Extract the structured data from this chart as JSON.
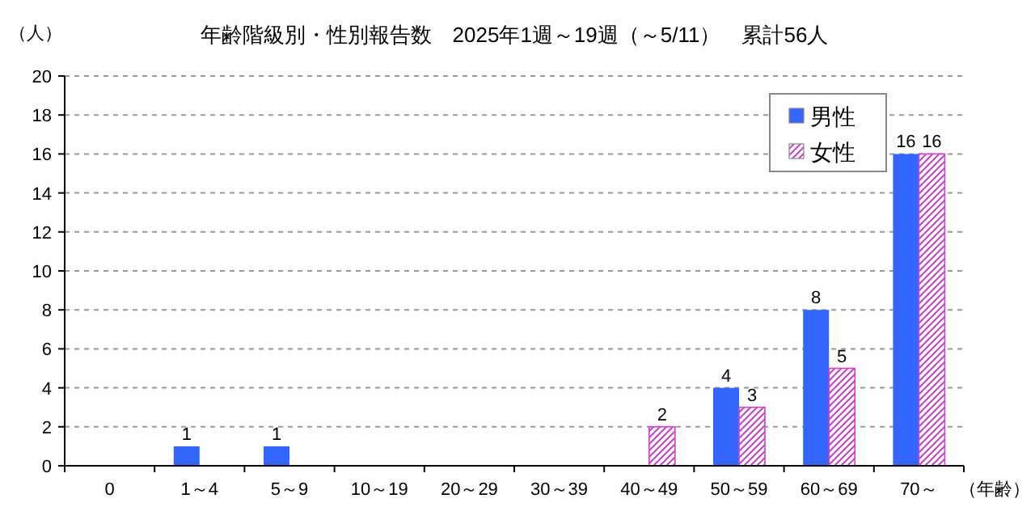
{
  "chart_data": {
    "type": "bar",
    "title": "年齢階級別・性別報告数　2025年1週～19週（～5/11）　累計56人",
    "xlabel": "（年齢）",
    "ylabel": "（人）",
    "categories": [
      "0",
      "1～4",
      "5～9",
      "10～19",
      "20～29",
      "30～39",
      "40～49",
      "50～59",
      "60～69",
      "70～"
    ],
    "series": [
      {
        "name": "男性",
        "color": "#3366ff",
        "values": [
          0,
          1,
          1,
          0,
          0,
          0,
          0,
          4,
          8,
          16
        ],
        "value_labels": [
          null,
          "1",
          "1",
          null,
          null,
          null,
          null,
          "4",
          "8",
          "16"
        ]
      },
      {
        "name": "女性",
        "color": "#d040d0",
        "values": [
          0,
          0,
          0,
          0,
          0,
          0,
          2,
          3,
          5,
          16
        ],
        "value_labels": [
          null,
          null,
          null,
          null,
          null,
          null,
          "2",
          "3",
          "5",
          "16"
        ]
      }
    ],
    "ylim": [
      0,
      20
    ],
    "yticks": [
      0,
      2,
      4,
      6,
      8,
      10,
      12,
      14,
      16,
      18,
      20
    ],
    "grid": "y",
    "legend": "top right"
  }
}
